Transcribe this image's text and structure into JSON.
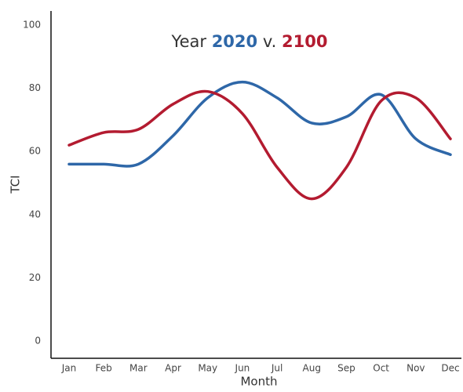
{
  "chart_data": {
    "type": "line",
    "title_parts": [
      "Year",
      "v."
    ],
    "x_label": "Month",
    "y_label": "TCI",
    "categories": [
      "Jan",
      "Feb",
      "Mar",
      "Apr",
      "May",
      "Jun",
      "Jul",
      "Aug",
      "Sep",
      "Oct",
      "Nov",
      "Dec"
    ],
    "series": [
      {
        "name": "2020",
        "color": "#2e67a8",
        "values": [
          56,
          56,
          56,
          65,
          77,
          82,
          77,
          69,
          71,
          78,
          64,
          59
        ]
      },
      {
        "name": "2100",
        "color": "#b31b30",
        "values": [
          62,
          66,
          67,
          75,
          79,
          72,
          55,
          45,
          55,
          76,
          77,
          64
        ]
      }
    ],
    "ylim": [
      -5.5,
      104.5
    ],
    "yticks": [
      0,
      20,
      40,
      60,
      80,
      100
    ],
    "grid": false
  }
}
